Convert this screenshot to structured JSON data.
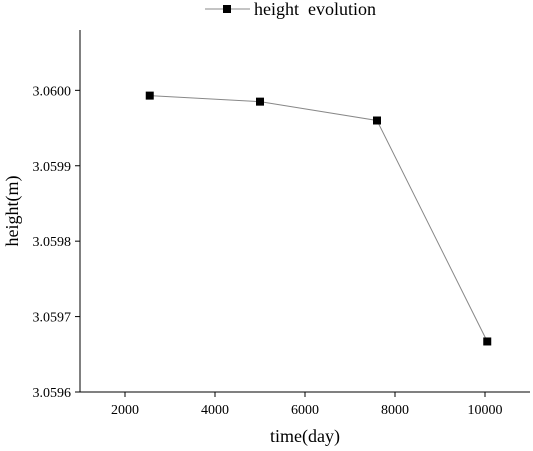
{
  "chart_data": {
    "type": "line",
    "title": "",
    "xlabel": "time(day)",
    "ylabel": "height(m)",
    "xlim": [
      1000,
      11000
    ],
    "ylim": [
      3.0596,
      3.06008
    ],
    "x_ticks": [
      2000,
      4000,
      6000,
      8000,
      10000
    ],
    "x_tick_labels": [
      "2000",
      "4000",
      "6000",
      "8000",
      "10000"
    ],
    "y_ticks": [
      3.0596,
      3.0597,
      3.0598,
      3.0599,
      3.06
    ],
    "y_tick_labels": [
      "3.0596",
      "3.0597",
      "3.0598",
      "3.0599",
      "3.0600"
    ],
    "grid": false,
    "legend_position": "top-center",
    "series": [
      {
        "name": "height  evolution",
        "x": [
          2550,
          5000,
          7600,
          10050
        ],
        "y": [
          3.059993,
          3.059985,
          3.05996,
          3.059667
        ],
        "line_color": "#888888",
        "marker": "square",
        "marker_color": "#000000"
      }
    ]
  }
}
